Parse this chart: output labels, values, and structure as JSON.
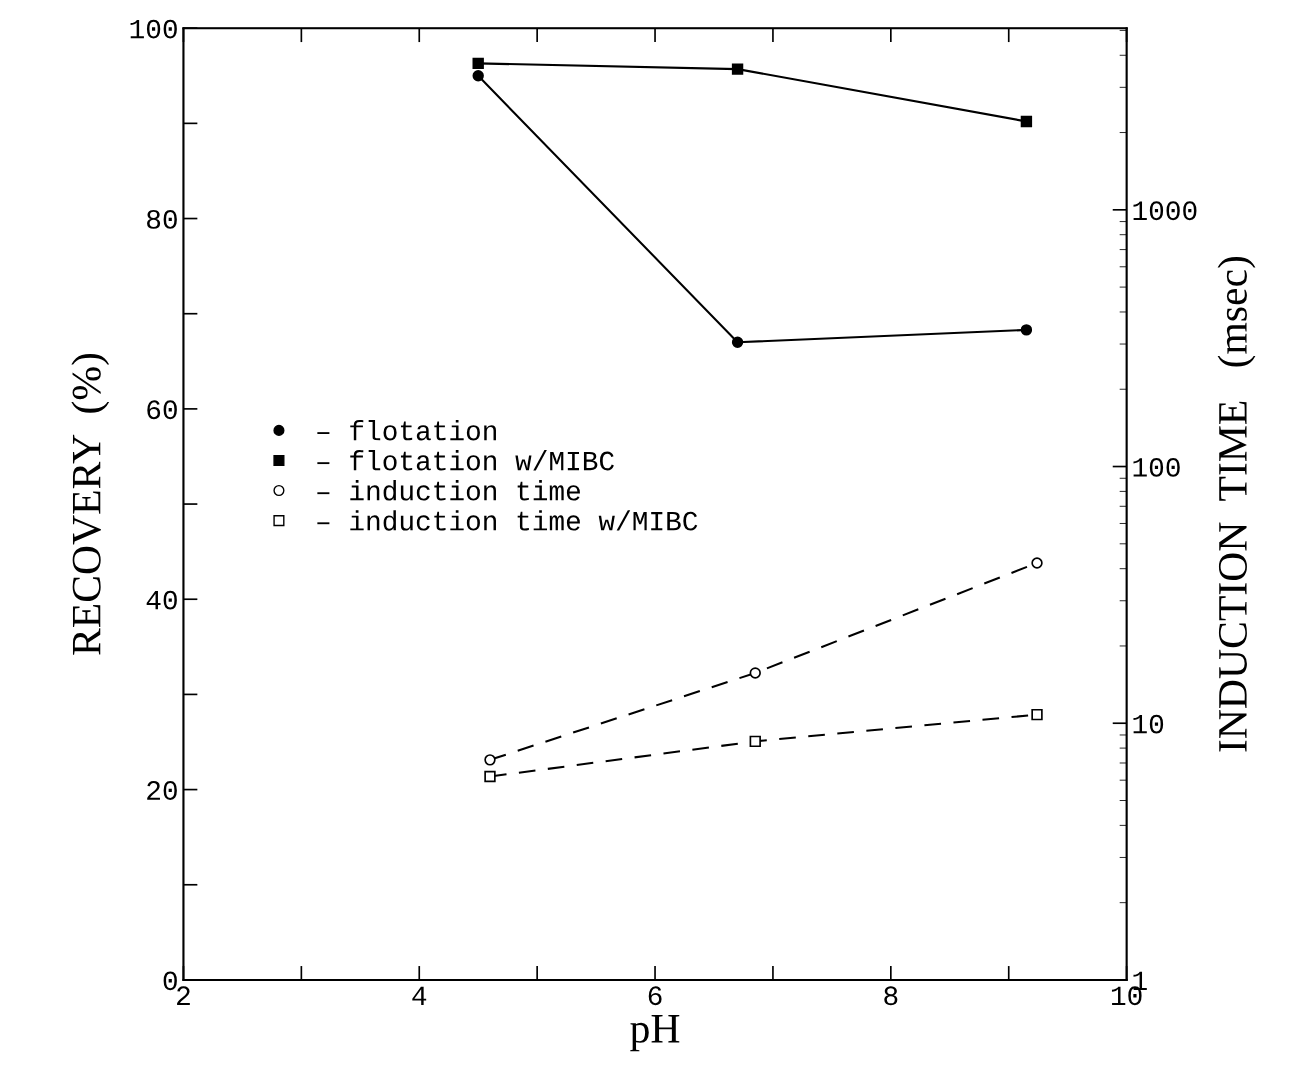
{
  "chart_data": {
    "type": "line",
    "xlabel": "pH",
    "ylabel": "RECOVERY  (%)",
    "y2label": "INDUCTION  TIME   (msec)",
    "xlim": [
      2,
      10
    ],
    "xticks": [
      2,
      {
        "value": 3,
        "label": null
      },
      4,
      {
        "value": 5,
        "label": null
      },
      6,
      {
        "value": 7,
        "label": null
      },
      8,
      {
        "value": 9,
        "label": null
      },
      10
    ],
    "ylim": [
      0,
      100
    ],
    "yticks": [
      0,
      {
        "value": 10,
        "label": null
      },
      20,
      {
        "value": 30,
        "label": null
      },
      40,
      {
        "value": 50,
        "label": null
      },
      60,
      {
        "value": 70,
        "label": null
      },
      80,
      {
        "value": 90,
        "label": null
      },
      100
    ],
    "log": "y2",
    "y2lim": [
      1,
      5100
    ],
    "y2ticks": [
      1,
      10,
      100,
      1000
    ],
    "legend": "left",
    "grid": false,
    "series": [
      {
        "name": "– flotation",
        "color": "#000000",
        "marker": "circle",
        "line_style": "solid",
        "x": [
          4.5,
          6.7,
          9.15
        ],
        "values": [
          95.0,
          67.0,
          68.3
        ]
      },
      {
        "name": "– flotation w/MIBC",
        "color": "#000000",
        "marker": "square",
        "line_style": "solid",
        "x": [
          4.5,
          6.7,
          9.15
        ],
        "values": [
          96.3,
          95.7,
          90.2
        ]
      },
      {
        "name": "– induction time",
        "color": "#000000",
        "marker": "circle",
        "line_style": "dashed",
        "axis": "y2",
        "x": [
          4.6,
          6.85,
          9.24
        ],
        "values": [
          7.2,
          15.7,
          42.1
        ]
      },
      {
        "name": "– induction time w/MIBC",
        "color": "#000000",
        "marker": "square",
        "line_style": "dashed",
        "axis": "y2",
        "x": [
          4.6,
          6.85,
          9.24
        ],
        "values": [
          6.2,
          8.5,
          10.8
        ]
      }
    ]
  }
}
